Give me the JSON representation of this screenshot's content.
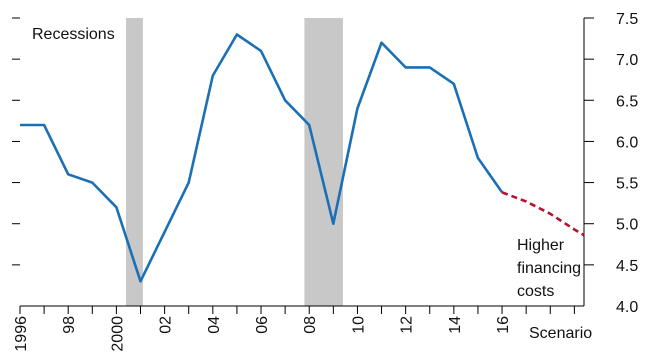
{
  "chart_data": {
    "type": "line",
    "title": "",
    "xlabel": "",
    "ylabel": "",
    "ylim": [
      4.0,
      7.5
    ],
    "xlim": [
      1996,
      2019.4
    ],
    "yticks": [
      4.0,
      4.5,
      5.0,
      5.5,
      6.0,
      6.5,
      7.0,
      7.5
    ],
    "ytick_labels": [
      "4.0",
      "4.5",
      "5.0",
      "5.5",
      "6.0",
      "6.5",
      "7.0",
      "7.5"
    ],
    "xticks": [
      1996,
      1998,
      2000,
      2002,
      2004,
      2006,
      2008,
      2010,
      2012,
      2014,
      2016
    ],
    "xtick_labels": [
      "1996",
      "98",
      "2000",
      "02",
      "04",
      "06",
      "08",
      "10",
      "12",
      "14",
      "16"
    ],
    "extra_xlabel": "Scenario",
    "grid": false,
    "recessions": [
      [
        2000.4,
        2001.1
      ],
      [
        2007.8,
        2009.4
      ]
    ],
    "annotations": {
      "recessions": "Recessions",
      "scenario_label": [
        "Higher",
        "financing",
        "costs"
      ]
    },
    "series": [
      {
        "style": "solid",
        "color": "#1a6fb5",
        "x": [
          1996,
          1997,
          1998,
          1999,
          2000,
          2001,
          2002,
          2003,
          2004,
          2005,
          2006,
          2007,
          2008,
          2009,
          2010,
          2011,
          2012,
          2013,
          2014,
          2015,
          2016
        ],
        "values": [
          6.2,
          6.2,
          5.6,
          5.5,
          5.2,
          4.3,
          4.9,
          5.5,
          6.8,
          7.3,
          7.1,
          6.5,
          6.2,
          5.0,
          6.4,
          7.2,
          6.9,
          6.9,
          6.7,
          5.8,
          5.38
        ]
      },
      {
        "style": "dashed",
        "color": "#b5122e",
        "x": [
          2016,
          2017,
          2018,
          2019,
          2019.4
        ],
        "values": [
          5.38,
          5.27,
          5.12,
          4.93,
          4.86
        ]
      }
    ],
    "colors": {
      "recession_band": "#c8c8c8",
      "axis": "#000000"
    }
  }
}
